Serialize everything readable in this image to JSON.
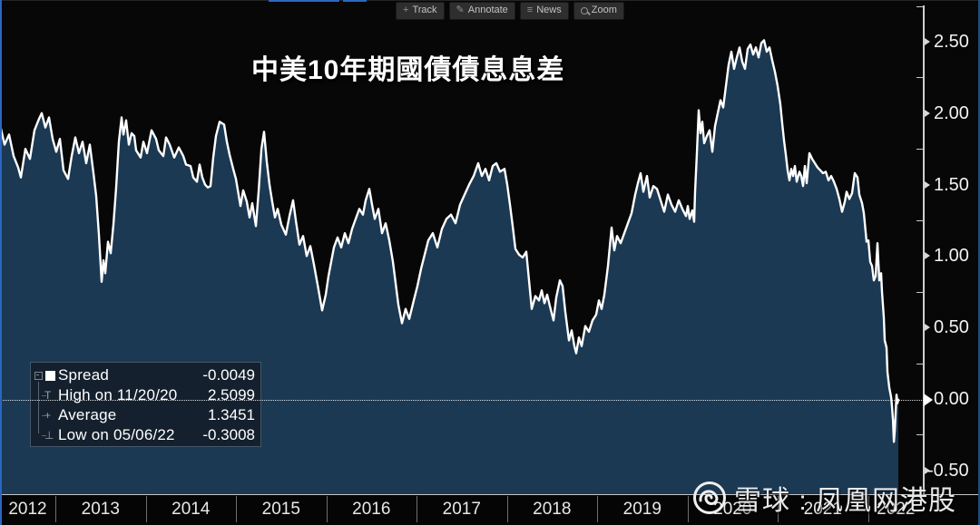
{
  "title": "中美10年期國債債息息差",
  "toolbar": {
    "buttons": [
      {
        "icon": "track-crosshair-icon",
        "label": "Track"
      },
      {
        "icon": "pencil-icon",
        "label": "Annotate"
      },
      {
        "icon": "list-icon",
        "label": "News"
      },
      {
        "icon": "magnifier-icon",
        "label": "Zoom"
      }
    ]
  },
  "legend": {
    "rows": [
      {
        "marker": "series-swatch",
        "label": "Spread",
        "value": "-0.0049"
      },
      {
        "marker": "high-marker",
        "label": "High on 11/20/20",
        "value": "2.5099"
      },
      {
        "marker": "average-marker",
        "label": "Average",
        "value": "1.3451"
      },
      {
        "marker": "low-marker",
        "label": "Low on 05/06/22",
        "value": "-0.3008"
      }
    ]
  },
  "watermark": {
    "logo": "xueqiu-snowball-logo",
    "text": "雪球 : 凤凰网港股"
  },
  "chart_data": {
    "type": "area",
    "title": "中美10年期國債債息息差",
    "series_name": "Spread",
    "x_unit": "decimal_year",
    "x_range": [
      2012.39,
      2022.34
    ],
    "ylim": [
      -0.6,
      2.75
    ],
    "x_tick_years": [
      2012,
      2013,
      2014,
      2015,
      2016,
      2017,
      2018,
      2019,
      2020,
      2021,
      2022
    ],
    "y_ticks_major": [
      2.5,
      2.0,
      1.5,
      1.0,
      0.5,
      0.0,
      -0.5
    ],
    "y_ticks_minor": [
      2.75,
      2.25,
      1.75,
      1.25,
      0.75,
      0.25,
      -0.25
    ],
    "grid": false,
    "legend_position": "bottom-left",
    "stats": {
      "last": -0.0049,
      "high": {
        "date": "11/20/20",
        "value": 2.5099
      },
      "average": 1.3451,
      "low": {
        "date": "05/06/22",
        "value": -0.3008
      }
    },
    "colors": {
      "area": "#1b3953",
      "line": "#ffffff",
      "background": "#070707",
      "accent_border": "#2b66c2"
    },
    "points": [
      [
        2012.387,
        1.92
      ],
      [
        2012.437,
        1.78
      ],
      [
        2012.487,
        1.85
      ],
      [
        2012.538,
        1.7
      ],
      [
        2012.588,
        1.62
      ],
      [
        2012.618,
        1.55
      ],
      [
        2012.668,
        1.75
      ],
      [
        2012.719,
        1.68
      ],
      [
        2012.769,
        1.88
      ],
      [
        2012.819,
        1.96
      ],
      [
        2012.849,
        2.0
      ],
      [
        2012.889,
        1.9
      ],
      [
        2012.93,
        1.97
      ],
      [
        2012.97,
        1.82
      ],
      [
        2013.01,
        1.73
      ],
      [
        2013.05,
        1.82
      ],
      [
        2013.09,
        1.6
      ],
      [
        2013.141,
        1.54
      ],
      [
        2013.181,
        1.7
      ],
      [
        2013.221,
        1.83
      ],
      [
        2013.261,
        1.72
      ],
      [
        2013.302,
        1.8
      ],
      [
        2013.342,
        1.65
      ],
      [
        2013.382,
        1.78
      ],
      [
        2013.422,
        1.58
      ],
      [
        2013.452,
        1.42
      ],
      [
        2013.482,
        1.15
      ],
      [
        2013.513,
        0.82
      ],
      [
        2013.533,
        0.97
      ],
      [
        2013.553,
        0.88
      ],
      [
        2013.583,
        1.1
      ],
      [
        2013.613,
        1.02
      ],
      [
        2013.643,
        1.22
      ],
      [
        2013.673,
        1.48
      ],
      [
        2013.704,
        1.8
      ],
      [
        2013.734,
        1.97
      ],
      [
        2013.754,
        1.85
      ],
      [
        2013.784,
        1.95
      ],
      [
        2013.814,
        1.78
      ],
      [
        2013.844,
        1.86
      ],
      [
        2013.874,
        1.84
      ],
      [
        2013.894,
        1.74
      ],
      [
        2013.945,
        1.69
      ],
      [
        2013.975,
        1.8
      ],
      [
        2014.015,
        1.72
      ],
      [
        2014.065,
        1.88
      ],
      [
        2014.116,
        1.82
      ],
      [
        2014.146,
        1.74
      ],
      [
        2014.196,
        1.7
      ],
      [
        2014.226,
        1.83
      ],
      [
        2014.266,
        1.78
      ],
      [
        2014.317,
        1.69
      ],
      [
        2014.367,
        1.76
      ],
      [
        2014.417,
        1.7
      ],
      [
        2014.447,
        1.64
      ],
      [
        2014.497,
        1.63
      ],
      [
        2014.528,
        1.55
      ],
      [
        2014.568,
        1.52
      ],
      [
        2014.598,
        1.64
      ],
      [
        2014.628,
        1.55
      ],
      [
        2014.658,
        1.5
      ],
      [
        2014.688,
        1.48
      ],
      [
        2014.719,
        1.49
      ],
      [
        2014.749,
        1.69
      ],
      [
        2014.779,
        1.84
      ],
      [
        2014.819,
        1.94
      ],
      [
        2014.869,
        1.92
      ],
      [
        2014.899,
        1.8
      ],
      [
        2014.93,
        1.71
      ],
      [
        2014.97,
        1.61
      ],
      [
        2015.0,
        1.54
      ],
      [
        2015.05,
        1.35
      ],
      [
        2015.08,
        1.46
      ],
      [
        2015.121,
        1.38
      ],
      [
        2015.151,
        1.27
      ],
      [
        2015.181,
        1.37
      ],
      [
        2015.221,
        1.21
      ],
      [
        2015.251,
        1.45
      ],
      [
        2015.282,
        1.75
      ],
      [
        2015.312,
        1.87
      ],
      [
        2015.342,
        1.66
      ],
      [
        2015.372,
        1.5
      ],
      [
        2015.402,
        1.38
      ],
      [
        2015.432,
        1.27
      ],
      [
        2015.462,
        1.33
      ],
      [
        2015.503,
        1.22
      ],
      [
        2015.553,
        1.15
      ],
      [
        2015.593,
        1.28
      ],
      [
        2015.633,
        1.39
      ],
      [
        2015.663,
        1.25
      ],
      [
        2015.704,
        1.08
      ],
      [
        2015.744,
        1.14
      ],
      [
        2015.784,
        1.0
      ],
      [
        2015.824,
        1.07
      ],
      [
        2015.864,
        0.94
      ],
      [
        2015.905,
        0.8
      ],
      [
        2015.955,
        0.62
      ],
      [
        2015.995,
        0.73
      ],
      [
        2016.025,
        0.86
      ],
      [
        2016.055,
        0.96
      ],
      [
        2016.085,
        1.06
      ],
      [
        2016.126,
        1.13
      ],
      [
        2016.166,
        1.06
      ],
      [
        2016.206,
        1.16
      ],
      [
        2016.246,
        1.09
      ],
      [
        2016.286,
        1.19
      ],
      [
        2016.327,
        1.26
      ],
      [
        2016.367,
        1.33
      ],
      [
        2016.407,
        1.29
      ],
      [
        2016.437,
        1.39
      ],
      [
        2016.477,
        1.47
      ],
      [
        2016.508,
        1.36
      ],
      [
        2016.538,
        1.26
      ],
      [
        2016.578,
        1.33
      ],
      [
        2016.618,
        1.16
      ],
      [
        2016.658,
        1.23
      ],
      [
        2016.698,
        1.11
      ],
      [
        2016.739,
        0.96
      ],
      [
        2016.769,
        0.81
      ],
      [
        2016.799,
        0.66
      ],
      [
        2016.839,
        0.53
      ],
      [
        2016.879,
        0.63
      ],
      [
        2016.92,
        0.56
      ],
      [
        2016.97,
        0.69
      ],
      [
        2017.01,
        0.79
      ],
      [
        2017.05,
        0.91
      ],
      [
        2017.09,
        1.01
      ],
      [
        2017.131,
        1.11
      ],
      [
        2017.181,
        1.16
      ],
      [
        2017.231,
        1.06
      ],
      [
        2017.281,
        1.19
      ],
      [
        2017.332,
        1.26
      ],
      [
        2017.382,
        1.29
      ],
      [
        2017.432,
        1.23
      ],
      [
        2017.482,
        1.36
      ],
      [
        2017.533,
        1.43
      ],
      [
        2017.583,
        1.5
      ],
      [
        2017.633,
        1.56
      ],
      [
        2017.683,
        1.65
      ],
      [
        2017.724,
        1.56
      ],
      [
        2017.764,
        1.61
      ],
      [
        2017.804,
        1.53
      ],
      [
        2017.844,
        1.63
      ],
      [
        2017.884,
        1.65
      ],
      [
        2017.925,
        1.59
      ],
      [
        2017.975,
        1.61
      ],
      [
        2018.005,
        1.5
      ],
      [
        2018.035,
        1.36
      ],
      [
        2018.065,
        1.21
      ],
      [
        2018.095,
        1.05
      ],
      [
        2018.136,
        1.01
      ],
      [
        2018.176,
        0.99
      ],
      [
        2018.216,
        1.03
      ],
      [
        2018.246,
        0.83
      ],
      [
        2018.276,
        0.63
      ],
      [
        2018.317,
        0.72
      ],
      [
        2018.357,
        0.69
      ],
      [
        2018.387,
        0.76
      ],
      [
        2018.417,
        0.67
      ],
      [
        2018.447,
        0.73
      ],
      [
        2018.477,
        0.65
      ],
      [
        2018.518,
        0.55
      ],
      [
        2018.548,
        0.71
      ],
      [
        2018.588,
        0.83
      ],
      [
        2018.618,
        0.79
      ],
      [
        2018.648,
        0.61
      ],
      [
        2018.688,
        0.41
      ],
      [
        2018.719,
        0.48
      ],
      [
        2018.749,
        0.37
      ],
      [
        2018.769,
        0.32
      ],
      [
        2018.799,
        0.43
      ],
      [
        2018.829,
        0.37
      ],
      [
        2018.869,
        0.51
      ],
      [
        2018.91,
        0.47
      ],
      [
        2018.95,
        0.55
      ],
      [
        2018.99,
        0.59
      ],
      [
        2019.02,
        0.69
      ],
      [
        2019.05,
        0.63
      ],
      [
        2019.08,
        0.73
      ],
      [
        2019.121,
        0.93
      ],
      [
        2019.161,
        1.2
      ],
      [
        2019.191,
        1.04
      ],
      [
        2019.221,
        1.14
      ],
      [
        2019.261,
        1.09
      ],
      [
        2019.302,
        1.16
      ],
      [
        2019.342,
        1.23
      ],
      [
        2019.382,
        1.3
      ],
      [
        2019.422,
        1.43
      ],
      [
        2019.452,
        1.51
      ],
      [
        2019.482,
        1.58
      ],
      [
        2019.513,
        1.45
      ],
      [
        2019.553,
        1.56
      ],
      [
        2019.583,
        1.41
      ],
      [
        2019.623,
        1.49
      ],
      [
        2019.663,
        1.47
      ],
      [
        2019.704,
        1.39
      ],
      [
        2019.744,
        1.31
      ],
      [
        2019.784,
        1.43
      ],
      [
        2019.824,
        1.36
      ],
      [
        2019.864,
        1.31
      ],
      [
        2019.905,
        1.39
      ],
      [
        2019.945,
        1.33
      ],
      [
        2019.985,
        1.28
      ],
      [
        2020.005,
        1.35
      ],
      [
        2020.025,
        1.26
      ],
      [
        2020.055,
        1.32
      ],
      [
        2020.075,
        1.24
      ],
      [
        2020.085,
        1.45
      ],
      [
        2020.106,
        1.72
      ],
      [
        2020.126,
        2.02
      ],
      [
        2020.146,
        1.86
      ],
      [
        2020.166,
        1.94
      ],
      [
        2020.186,
        1.79
      ],
      [
        2020.216,
        1.84
      ],
      [
        2020.246,
        1.88
      ],
      [
        2020.276,
        1.73
      ],
      [
        2020.307,
        1.91
      ],
      [
        2020.337,
        2.0
      ],
      [
        2020.367,
        2.09
      ],
      [
        2020.397,
        2.04
      ],
      [
        2020.427,
        2.19
      ],
      [
        2020.457,
        2.34
      ],
      [
        2020.487,
        2.43
      ],
      [
        2020.518,
        2.31
      ],
      [
        2020.548,
        2.39
      ],
      [
        2020.578,
        2.46
      ],
      [
        2020.608,
        2.36
      ],
      [
        2020.638,
        2.31
      ],
      [
        2020.668,
        2.45
      ],
      [
        2020.698,
        2.48
      ],
      [
        2020.729,
        2.41
      ],
      [
        2020.759,
        2.46
      ],
      [
        2020.789,
        2.39
      ],
      [
        2020.819,
        2.49
      ],
      [
        2020.849,
        2.51
      ],
      [
        2020.879,
        2.43
      ],
      [
        2020.91,
        2.46
      ],
      [
        2020.94,
        2.37
      ],
      [
        2020.97,
        2.29
      ],
      [
        2021.0,
        2.19
      ],
      [
        2021.03,
        2.06
      ],
      [
        2021.05,
        1.93
      ],
      [
        2021.07,
        1.81
      ],
      [
        2021.09,
        1.71
      ],
      [
        2021.111,
        1.6
      ],
      [
        2021.131,
        1.53
      ],
      [
        2021.151,
        1.61
      ],
      [
        2021.171,
        1.56
      ],
      [
        2021.191,
        1.63
      ],
      [
        2021.211,
        1.52
      ],
      [
        2021.241,
        1.59
      ],
      [
        2021.261,
        1.56
      ],
      [
        2021.281,
        1.49
      ],
      [
        2021.302,
        1.63
      ],
      [
        2021.322,
        1.51
      ],
      [
        2021.352,
        1.72
      ],
      [
        2021.382,
        1.68
      ],
      [
        2021.412,
        1.65
      ],
      [
        2021.442,
        1.62
      ],
      [
        2021.472,
        1.6
      ],
      [
        2021.503,
        1.58
      ],
      [
        2021.533,
        1.59
      ],
      [
        2021.563,
        1.53
      ],
      [
        2021.593,
        1.56
      ],
      [
        2021.623,
        1.52
      ],
      [
        2021.653,
        1.47
      ],
      [
        2021.683,
        1.4
      ],
      [
        2021.714,
        1.31
      ],
      [
        2021.744,
        1.38
      ],
      [
        2021.764,
        1.45
      ],
      [
        2021.794,
        1.4
      ],
      [
        2021.824,
        1.44
      ],
      [
        2021.854,
        1.58
      ],
      [
        2021.884,
        1.55
      ],
      [
        2021.905,
        1.43
      ],
      [
        2021.935,
        1.37
      ],
      [
        2021.955,
        1.3
      ],
      [
        2021.985,
        1.1
      ],
      [
        2022.005,
        1.11
      ],
      [
        2022.025,
        0.96
      ],
      [
        2022.045,
        0.93
      ],
      [
        2022.065,
        0.83
      ],
      [
        2022.085,
        0.86
      ],
      [
        2022.106,
        1.09
      ],
      [
        2022.126,
        0.83
      ],
      [
        2022.146,
        0.88
      ],
      [
        2022.156,
        0.75
      ],
      [
        2022.176,
        0.57
      ],
      [
        2022.186,
        0.41
      ],
      [
        2022.206,
        0.36
      ],
      [
        2022.216,
        0.19
      ],
      [
        2022.236,
        0.08
      ],
      [
        2022.257,
        0.01
      ],
      [
        2022.267,
        -0.06
      ],
      [
        2022.277,
        -0.15
      ],
      [
        2022.287,
        -0.3
      ],
      [
        2022.297,
        -0.22
      ],
      [
        2022.307,
        -0.1
      ],
      [
        2022.317,
        0.03
      ],
      [
        2022.327,
        -0.03
      ],
      [
        2022.337,
        -0.005
      ]
    ]
  }
}
